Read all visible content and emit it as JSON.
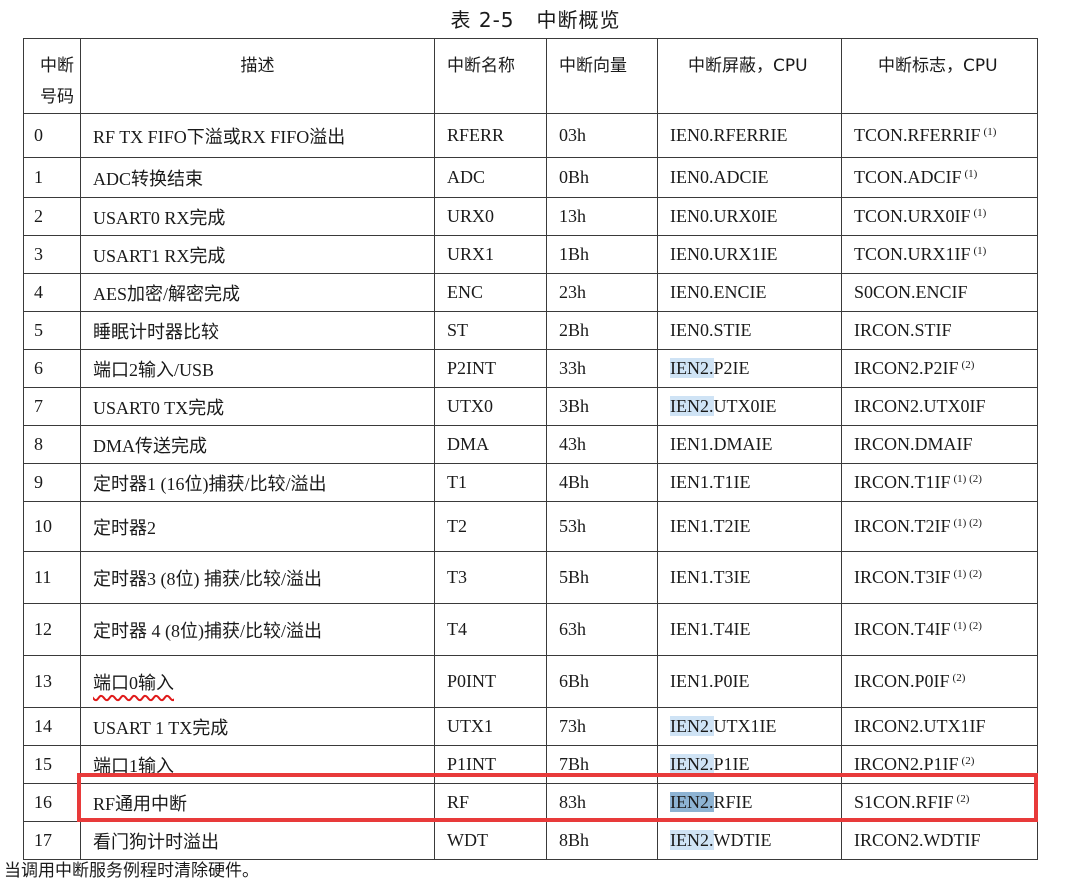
{
  "title": {
    "table_no": "表 2-5",
    "name": "中断概览"
  },
  "headers": {
    "num": [
      "中断",
      "号码"
    ],
    "desc": "描述",
    "name": "中断名称",
    "vector": "中断向量",
    "mask": "中断屏蔽，CPU",
    "flag": "中断标志，CPU"
  },
  "rows": [
    {
      "num": "0",
      "desc": "RF TX FIFO下溢或RX FIFO溢出",
      "name": "RFERR",
      "vector": "03h",
      "mask_pre": "IEN0.",
      "mask_post": "RFERRIE",
      "flag": "TCON.RFERRIF",
      "flag_note": "(1)"
    },
    {
      "num": "1",
      "desc": "ADC转换结束",
      "name": "ADC",
      "vector": "0Bh",
      "mask_pre": "IEN0.",
      "mask_post": "ADCIE",
      "flag": "TCON.ADCIF",
      "flag_note": "(1)"
    },
    {
      "num": "2",
      "desc": "USART0 RX完成",
      "name": "URX0",
      "vector": "13h",
      "mask_pre": "IEN0.",
      "mask_post": "URX0IE",
      "flag": "TCON.URX0IF",
      "flag_note": "(1)"
    },
    {
      "num": "3",
      "desc": "USART1 RX完成",
      "name": "URX1",
      "vector": "1Bh",
      "mask_pre": "IEN0.",
      "mask_post": "URX1IE",
      "flag": "TCON.URX1IF",
      "flag_note": "(1)"
    },
    {
      "num": "4",
      "desc": "AES加密/解密完成",
      "name": "ENC",
      "vector": "23h",
      "mask_pre": "IEN0.",
      "mask_post": "ENCIE",
      "flag": "S0CON.ENCIF",
      "flag_note": ""
    },
    {
      "num": "5",
      "desc": "睡眠计时器比较",
      "name": "ST",
      "vector": "2Bh",
      "mask_pre": "IEN0.",
      "mask_post": "STIE",
      "flag": "IRCON.STIF",
      "flag_note": ""
    },
    {
      "num": "6",
      "desc": "端口2输入/USB",
      "name": "P2INT",
      "vector": "33h",
      "mask_pre": "IEN2.",
      "mask_post": "P2IE",
      "flag": "IRCON2.P2IF",
      "flag_note": "(2)"
    },
    {
      "num": "7",
      "desc": "USART0 TX完成",
      "name": "UTX0",
      "vector": "3Bh",
      "mask_pre": "IEN2.",
      "mask_post": "UTX0IE",
      "flag": "IRCON2.UTX0IF",
      "flag_note": ""
    },
    {
      "num": "8",
      "desc": "DMA传送完成",
      "name": "DMA",
      "vector": "43h",
      "mask_pre": "IEN1.",
      "mask_post": "DMAIE",
      "flag": "IRCON.DMAIF",
      "flag_note": ""
    },
    {
      "num": "9",
      "desc": "定时器1 (16位)捕获/比较/溢出",
      "name": "T1",
      "vector": "4Bh",
      "mask_pre": "IEN1.",
      "mask_post": "T1IE",
      "flag": "IRCON.T1IF",
      "flag_note": "(1) (2)"
    },
    {
      "num": "10",
      "desc": "定时器2",
      "name": "T2",
      "vector": "53h",
      "mask_pre": "IEN1.",
      "mask_post": "T2IE",
      "flag": "IRCON.T2IF",
      "flag_note": "(1) (2)"
    },
    {
      "num": "11",
      "desc": "定时器3 (8位)  捕获/比较/溢出",
      "name": "T3",
      "vector": "5Bh",
      "mask_pre": "IEN1.",
      "mask_post": "T3IE",
      "flag": "IRCON.T3IF",
      "flag_note": "(1) (2)"
    },
    {
      "num": "12",
      "desc": "定时器  4 (8位)捕获/比较/溢出",
      "name": "T4",
      "vector": "63h",
      "mask_pre": "IEN1.",
      "mask_post": "T4IE",
      "flag": "IRCON.T4IF",
      "flag_note": "(1) (2)"
    },
    {
      "num": "13",
      "desc": "端口0输入",
      "name": "P0INT",
      "vector": "6Bh",
      "mask_pre": "IEN1.",
      "mask_post": "P0IE",
      "flag": "IRCON.P0IF",
      "flag_note": "(2)"
    },
    {
      "num": "14",
      "desc": "USART 1 TX完成",
      "name": "UTX1",
      "vector": "73h",
      "mask_pre": "IEN2.",
      "mask_post": "UTX1IE",
      "flag": "IRCON2.UTX1IF",
      "flag_note": ""
    },
    {
      "num": "15",
      "desc": "端口1输入",
      "name": "P1INT",
      "vector": "7Bh",
      "mask_pre": "IEN2.",
      "mask_post": "P1IE",
      "flag": "IRCON2.P1IF",
      "flag_note": "(2)"
    },
    {
      "num": "16",
      "desc": "RF通用中断",
      "name": "RF",
      "vector": "83h",
      "mask_pre": "IEN2.",
      "mask_post": "RFIE",
      "flag": "S1CON.RFIF",
      "flag_note": "(2)"
    },
    {
      "num": "17",
      "desc": "看门狗计时溢出",
      "name": "WDT",
      "vector": "8Bh",
      "mask_pre": "IEN2.",
      "mask_post": "WDTIE",
      "flag": "IRCON2.WDTIF",
      "flag_note": ""
    }
  ],
  "footnote": "当调用中断服务例程时清除硬件。"
}
